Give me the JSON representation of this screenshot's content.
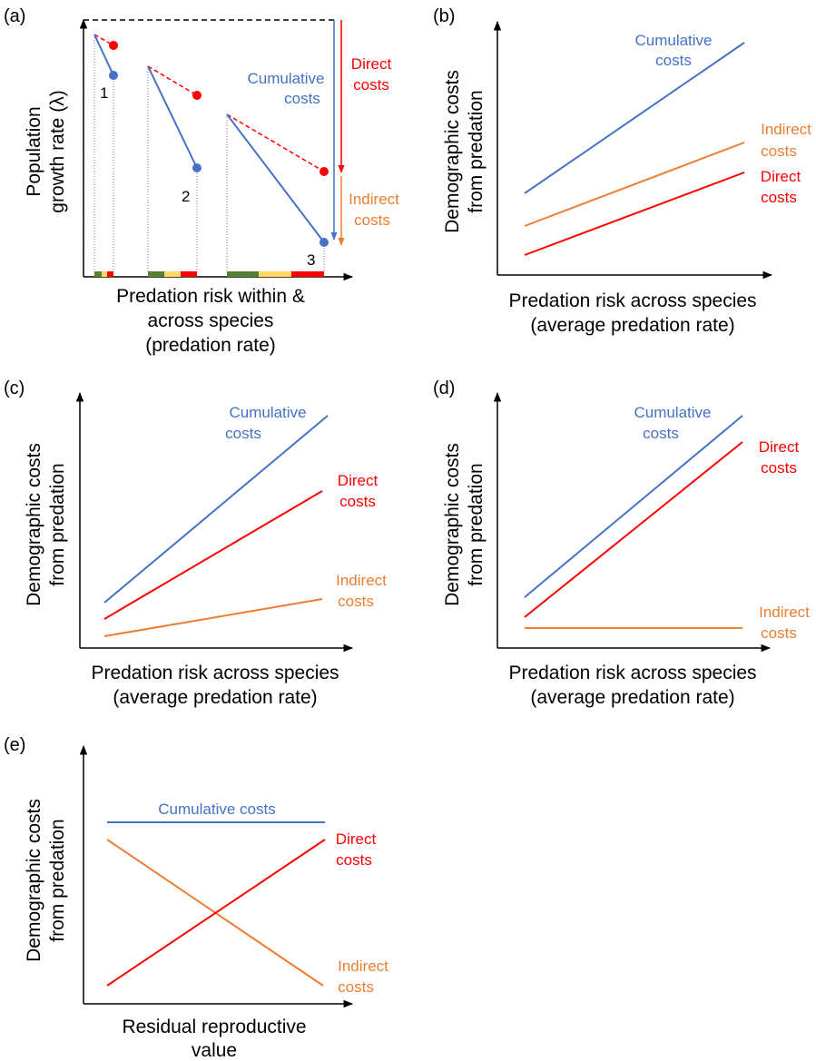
{
  "colors": {
    "axis": "#000000",
    "cumulative": "#4472C4",
    "direct": "#FF0000",
    "indirect": "#ED7D31",
    "bar_green": "#548235",
    "bar_yellow": "#FFD966",
    "bar_red": "#FF0000"
  },
  "panel_a": {
    "tag": "(a)",
    "ylabel_line1": "Population",
    "ylabel_line2": "growth rate (λ)",
    "xlabel_line1": "Predation risk within &",
    "xlabel_line2": "across species",
    "xlabel_line3": "(predation rate)",
    "point_labels": [
      "1",
      "2",
      "3"
    ],
    "cumulative_line1": "Cumulative",
    "cumulative_line2": "costs",
    "direct_line1": "Direct",
    "direct_line2": "costs",
    "indirect_line1": "Indirect",
    "indirect_line2": "costs"
  },
  "panel_b": {
    "tag": "(b)",
    "ylabel_line1": "Demographic costs",
    "ylabel_line2": "from predation",
    "xlabel_line1": "Predation risk across species",
    "xlabel_line2": "(average predation rate)",
    "cumulative_line1": "Cumulative",
    "cumulative_line2": "costs",
    "indirect_line1": "Indirect",
    "indirect_line2": "costs",
    "direct_line1": "Direct",
    "direct_line2": "costs"
  },
  "panel_c": {
    "tag": "(c)",
    "ylabel_line1": "Demographic costs",
    "ylabel_line2": "from predation",
    "xlabel_line1": "Predation risk across species",
    "xlabel_line2": "(average predation rate)",
    "cumulative_line1": "Cumulative",
    "cumulative_line2": "costs",
    "direct_line1": "Direct",
    "direct_line2": "costs",
    "indirect_line1": "Indirect",
    "indirect_line2": "costs"
  },
  "panel_d": {
    "tag": "(d)",
    "ylabel_line1": "Demographic costs",
    "ylabel_line2": "from predation",
    "xlabel_line1": "Predation risk across species",
    "xlabel_line2": "(average predation rate)",
    "cumulative_line1": "Cumulative",
    "cumulative_line2": "costs",
    "direct_line1": "Direct",
    "direct_line2": "costs",
    "indirect_line1": "Indirect",
    "indirect_line2": "costs"
  },
  "panel_e": {
    "tag": "(e)",
    "ylabel_line1": "Demographic costs",
    "ylabel_line2": "from predation",
    "xlabel_line1": "Residual reproductive",
    "xlabel_line2": "value",
    "cumulative_label": "Cumulative costs",
    "direct_line1": "Direct",
    "direct_line2": "costs",
    "indirect_line1": "Indirect",
    "indirect_line2": "costs"
  }
}
